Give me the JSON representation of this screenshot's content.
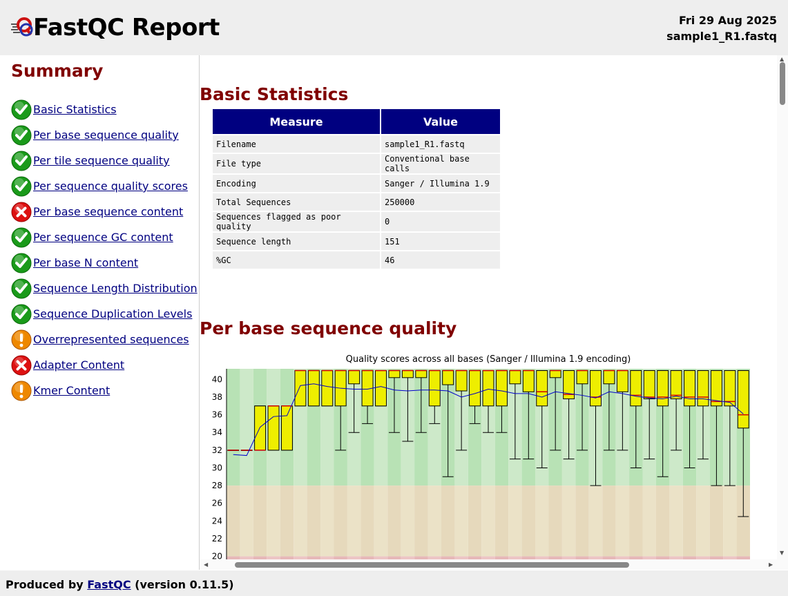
{
  "header": {
    "title": "FastQC Report",
    "date": "Fri 29 Aug 2025",
    "filename": "sample1_R1.fastq"
  },
  "summary": {
    "title": "Summary",
    "items": [
      {
        "label": "Basic Statistics",
        "status": "pass"
      },
      {
        "label": "Per base sequence quality",
        "status": "pass"
      },
      {
        "label": "Per tile sequence quality",
        "status": "pass"
      },
      {
        "label": "Per sequence quality scores",
        "status": "pass"
      },
      {
        "label": "Per base sequence content",
        "status": "fail"
      },
      {
        "label": "Per sequence GC content",
        "status": "pass"
      },
      {
        "label": "Per base N content",
        "status": "pass"
      },
      {
        "label": "Sequence Length Distribution",
        "status": "pass"
      },
      {
        "label": "Sequence Duplication Levels",
        "status": "pass"
      },
      {
        "label": "Overrepresented sequences",
        "status": "warn"
      },
      {
        "label": "Adapter Content",
        "status": "fail"
      },
      {
        "label": "Kmer Content",
        "status": "warn"
      }
    ]
  },
  "basic_stats": {
    "title": "Basic Statistics",
    "headers": {
      "measure": "Measure",
      "value": "Value"
    },
    "rows": [
      {
        "measure": "Filename",
        "value": "sample1_R1.fastq"
      },
      {
        "measure": "File type",
        "value": "Conventional base calls"
      },
      {
        "measure": "Encoding",
        "value": "Sanger / Illumina 1.9"
      },
      {
        "measure": "Total Sequences",
        "value": "250000"
      },
      {
        "measure": "Sequences flagged as poor quality",
        "value": "0"
      },
      {
        "measure": "Sequence length",
        "value": "151"
      },
      {
        "measure": "%GC",
        "value": "46"
      }
    ]
  },
  "quality_section": {
    "title": "Per base sequence quality"
  },
  "chart_data": {
    "type": "box",
    "title": "Quality scores across all bases (Sanger / Illumina 1.9 encoding)",
    "y_ticks": [
      20,
      22,
      24,
      26,
      28,
      30,
      32,
      34,
      36,
      38,
      40
    ],
    "ylim": [
      19.5,
      41.2
    ],
    "bands": {
      "good_min": 28,
      "ok_min": 20
    },
    "boxes": [
      {
        "q1": 32,
        "q3": 32,
        "median": 32,
        "lw": 32,
        "uw": 32,
        "mean": 31.5
      },
      {
        "q1": 32,
        "q3": 32,
        "median": 32,
        "lw": 32,
        "uw": 32,
        "mean": 31.4
      },
      {
        "q1": 32,
        "q3": 37,
        "median": 32,
        "lw": 32,
        "uw": 37,
        "mean": 34.6
      },
      {
        "q1": 32,
        "q3": 37,
        "median": 37,
        "lw": 32,
        "uw": 37,
        "mean": 35.8
      },
      {
        "q1": 32,
        "q3": 37,
        "median": 37,
        "lw": 32,
        "uw": 37,
        "mean": 35.9
      },
      {
        "q1": 37,
        "q3": 41,
        "median": 41,
        "lw": 37,
        "uw": 41,
        "mean": 39.3
      },
      {
        "q1": 37,
        "q3": 41,
        "median": 41,
        "lw": 37,
        "uw": 41,
        "mean": 39.5
      },
      {
        "q1": 37,
        "q3": 41,
        "median": 41,
        "lw": 37,
        "uw": 41,
        "mean": 39.2
      },
      {
        "q1": 37,
        "q3": 41,
        "median": 41,
        "lw": 32,
        "uw": 41,
        "mean": 39.0
      },
      {
        "q1": 39.5,
        "q3": 41,
        "median": 41,
        "lw": 34,
        "uw": 41,
        "mean": 38.9
      },
      {
        "q1": 37,
        "q3": 41,
        "median": 41,
        "lw": 35,
        "uw": 41,
        "mean": 38.9
      },
      {
        "q1": 37,
        "q3": 41,
        "median": 41,
        "lw": 37,
        "uw": 41,
        "mean": 39.2
      },
      {
        "q1": 40.2,
        "q3": 41,
        "median": 41,
        "lw": 34,
        "uw": 41,
        "mean": 38.8
      },
      {
        "q1": 40.2,
        "q3": 41,
        "median": 41,
        "lw": 33,
        "uw": 41,
        "mean": 38.7
      },
      {
        "q1": 40.2,
        "q3": 41,
        "median": 41,
        "lw": 34,
        "uw": 41,
        "mean": 38.8
      },
      {
        "q1": 37,
        "q3": 41,
        "median": 41,
        "lw": 35,
        "uw": 41,
        "mean": 38.8
      },
      {
        "q1": 39.4,
        "q3": 41,
        "median": 41,
        "lw": 29,
        "uw": 41,
        "mean": 38.7
      },
      {
        "q1": 38.7,
        "q3": 41,
        "median": 41,
        "lw": 32,
        "uw": 41,
        "mean": 38.0
      },
      {
        "q1": 37,
        "q3": 41,
        "median": 41,
        "lw": 35,
        "uw": 41,
        "mean": 38.4
      },
      {
        "q1": 37,
        "q3": 41,
        "median": 41,
        "lw": 34,
        "uw": 41,
        "mean": 38.9
      },
      {
        "q1": 37,
        "q3": 41,
        "median": 41,
        "lw": 34,
        "uw": 41,
        "mean": 38.7
      },
      {
        "q1": 39.5,
        "q3": 41,
        "median": 41,
        "lw": 31,
        "uw": 41,
        "mean": 38.4
      },
      {
        "q1": 38.6,
        "q3": 41,
        "median": 41,
        "lw": 31,
        "uw": 41,
        "mean": 38.4
      },
      {
        "q1": 37,
        "q3": 41,
        "median": 38.6,
        "lw": 30,
        "uw": 41,
        "mean": 38.0
      },
      {
        "q1": 40.2,
        "q3": 41,
        "median": 41,
        "lw": 32,
        "uw": 41,
        "mean": 38.6
      },
      {
        "q1": 37.8,
        "q3": 41,
        "median": 38.3,
        "lw": 31,
        "uw": 41,
        "mean": 38.4
      },
      {
        "q1": 39.5,
        "q3": 41,
        "median": 41,
        "lw": 32,
        "uw": 41,
        "mean": 38.2
      },
      {
        "q1": 37,
        "q3": 41,
        "median": 38,
        "lw": 28,
        "uw": 41,
        "mean": 37.9
      },
      {
        "q1": 39.5,
        "q3": 41,
        "median": 41,
        "lw": 32,
        "uw": 41,
        "mean": 38.6
      },
      {
        "q1": 38.6,
        "q3": 41,
        "median": 41,
        "lw": 32,
        "uw": 41,
        "mean": 38.4
      },
      {
        "q1": 37,
        "q3": 41,
        "median": 38.2,
        "lw": 30,
        "uw": 41,
        "mean": 38.1
      },
      {
        "q1": 37.8,
        "q3": 41,
        "median": 38,
        "lw": 31,
        "uw": 41,
        "mean": 37.9
      },
      {
        "q1": 37,
        "q3": 41,
        "median": 38,
        "lw": 29,
        "uw": 41,
        "mean": 37.8
      },
      {
        "q1": 37.8,
        "q3": 41,
        "median": 38.2,
        "lw": 32,
        "uw": 41,
        "mean": 38.1
      },
      {
        "q1": 37,
        "q3": 41,
        "median": 38,
        "lw": 30,
        "uw": 41,
        "mean": 37.8
      },
      {
        "q1": 37,
        "q3": 41,
        "median": 38,
        "lw": 31,
        "uw": 41,
        "mean": 37.8
      },
      {
        "q1": 37,
        "q3": 41,
        "median": 37.5,
        "lw": 28,
        "uw": 41,
        "mean": 37.6
      },
      {
        "q1": 37,
        "q3": 41,
        "median": 37.5,
        "lw": 28,
        "uw": 41,
        "mean": 37.4
      },
      {
        "q1": 34.5,
        "q3": 41,
        "median": 36,
        "lw": 24.5,
        "uw": 41,
        "mean": 36.1
      }
    ]
  },
  "footer": {
    "prefix": "Produced by",
    "link": "FastQC",
    "version": "(version 0.11.5)"
  },
  "colors": {
    "pass": "#1a9a1a",
    "fail": "#dd1111",
    "warn": "#ee8800",
    "table_header": "#000080",
    "section_title": "#800000"
  }
}
